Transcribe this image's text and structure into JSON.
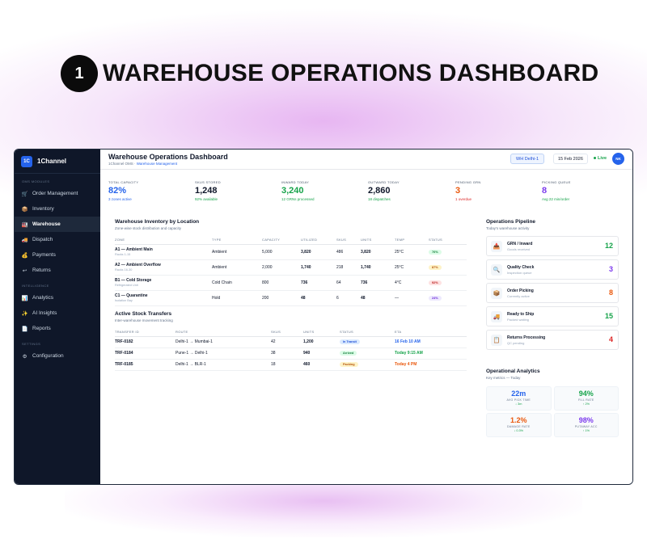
{
  "headline": {
    "step": "1",
    "title": "WAREHOUSE OPERATIONS DASHBOARD"
  },
  "colors": {
    "primary": "#2563eb",
    "sidebar": "#0f1729",
    "green": "#16a34a",
    "orange": "#ea580c",
    "purple": "#7c3aed",
    "red": "#dc2626"
  },
  "sidebar": {
    "brand_logo": "1C",
    "brand_name": "1Channel",
    "sections": [
      {
        "title": "OMS MODULES",
        "items": [
          {
            "icon": "cart-icon",
            "label": "Order Management"
          },
          {
            "icon": "box-icon",
            "label": "Inventory"
          },
          {
            "icon": "warehouse-icon",
            "label": "Warehouse",
            "active": true
          },
          {
            "icon": "truck-icon",
            "label": "Dispatch"
          },
          {
            "icon": "money-icon",
            "label": "Payments"
          },
          {
            "icon": "returns-icon",
            "label": "Returns"
          }
        ]
      },
      {
        "title": "INTELLIGENCE",
        "items": [
          {
            "icon": "chart-icon",
            "label": "Analytics"
          },
          {
            "icon": "sparkle-icon",
            "label": "AI Insights"
          },
          {
            "icon": "report-icon",
            "label": "Reports"
          }
        ]
      },
      {
        "title": "SETTINGS",
        "items": [
          {
            "icon": "gear-icon",
            "label": "Configuration"
          }
        ]
      }
    ]
  },
  "topbar": {
    "title": "Warehouse Operations Dashboard",
    "breadcrumb_root": "1Channel OMS ·",
    "breadcrumb_current": "Warehouse Management",
    "warehouse": "WH Delhi-1",
    "date": "15 Feb 2026",
    "live": "Live",
    "avatar": "NK"
  },
  "kpis": [
    {
      "label": "TOTAL CAPACITY",
      "value": "82%",
      "sub": "3 zones active",
      "value_color": "#2563eb",
      "sub_color": "#2563eb"
    },
    {
      "label": "SKUS STORED",
      "value": "1,248",
      "sub": "92% available",
      "value_color": "#0f172a",
      "sub_color": "#16a34a"
    },
    {
      "label": "INWARD TODAY",
      "value": "3,240",
      "sub": "12 GRNs processed",
      "value_color": "#16a34a",
      "sub_color": "#16a34a"
    },
    {
      "label": "OUTWARD TODAY",
      "value": "2,860",
      "sub": "18 dispatches",
      "value_color": "#0f172a",
      "sub_color": "#16a34a"
    },
    {
      "label": "PENDING GRN",
      "value": "3",
      "sub": "1 overdue",
      "value_color": "#ea580c",
      "sub_color": "#dc2626"
    },
    {
      "label": "PICKING QUEUE",
      "value": "8",
      "sub": "Avg 22 min/order",
      "value_color": "#7c3aed",
      "sub_color": "#16a34a"
    }
  ],
  "inventory": {
    "title": "Warehouse Inventory by Location",
    "subtitle": "Zone-wise stock distribution and capacity",
    "columns": [
      "ZONE",
      "TYPE",
      "CAPACITY",
      "UTILIZED",
      "SKUS",
      "UNITS",
      "TEMP",
      "STATUS"
    ],
    "rows": [
      {
        "zone": "A1 — Ambient Main",
        "zone_sub": "Racks 1-15",
        "type": "Ambient",
        "capacity": "5,000",
        "utilized": "3,820",
        "skus": "486",
        "units": "3,820",
        "temp": "25°C",
        "status": "76%",
        "status_bg": "#dcfce7",
        "status_fg": "#15803d"
      },
      {
        "zone": "A2 — Ambient Overflow",
        "zone_sub": "Racks 16-30",
        "type": "Ambient",
        "capacity": "2,000",
        "utilized": "1,740",
        "skus": "218",
        "units": "1,740",
        "temp": "25°C",
        "status": "87%",
        "status_bg": "#fef3c7",
        "status_fg": "#b45309"
      },
      {
        "zone": "B1 — Cold Storage",
        "zone_sub": "Refrigerated Unit",
        "type": "Cold Chain",
        "capacity": "800",
        "utilized": "736",
        "skus": "64",
        "units": "736",
        "temp": "4°C",
        "status": "92%",
        "status_bg": "#fee2e2",
        "status_fg": "#b91c1c"
      },
      {
        "zone": "C1 — Quarantine",
        "zone_sub": "Isolation Bay",
        "type": "Hold",
        "capacity": "200",
        "utilized": "48",
        "skus": "6",
        "units": "48",
        "temp": "—",
        "status": "24%",
        "status_bg": "#ede9fe",
        "status_fg": "#6d28d9"
      }
    ]
  },
  "transfers": {
    "title": "Active Stock Transfers",
    "subtitle": "Inter-warehouse movement tracking",
    "columns": [
      "TRANSFER ID",
      "ROUTE",
      "SKUS",
      "UNITS",
      "STATUS",
      "ETA"
    ],
    "rows": [
      {
        "id": "TRF-0182",
        "route": "Delhi-1 → Mumbai-1",
        "skus": "42",
        "units": "1,200",
        "status": "In Transit",
        "status_bg": "#dbeafe",
        "status_fg": "#1d4ed8",
        "eta": "16 Feb 10 AM",
        "eta_color": "#2563eb"
      },
      {
        "id": "TRF-0184",
        "route": "Pune-1 → Delhi-1",
        "skus": "38",
        "units": "940",
        "status": "Arrived",
        "status_bg": "#dcfce7",
        "status_fg": "#15803d",
        "eta": "Today 9:15 AM",
        "eta_color": "#16a34a"
      },
      {
        "id": "TRF-0185",
        "route": "Delhi-1 → BLR-1",
        "skus": "18",
        "units": "460",
        "status": "Packing",
        "status_bg": "#fef3c7",
        "status_fg": "#b45309",
        "eta": "Today 4 PM",
        "eta_color": "#ea580c"
      }
    ]
  },
  "pipeline": {
    "title": "Operations Pipeline",
    "subtitle": "Today's warehouse activity",
    "items": [
      {
        "icon": "inbound-icon",
        "glyph": "📥",
        "name": "GRN / Inward",
        "sub": "Goods received",
        "count": "12",
        "color": "#16a34a"
      },
      {
        "icon": "magnifier-icon",
        "glyph": "🔍",
        "name": "Quality Check",
        "sub": "Inspection queue",
        "count": "3",
        "color": "#7c3aed"
      },
      {
        "icon": "package-icon",
        "glyph": "📦",
        "name": "Order Picking",
        "sub": "Currently active",
        "count": "8",
        "color": "#ea580c"
      },
      {
        "icon": "forklift-icon",
        "glyph": "🚚",
        "name": "Ready to Ship",
        "sub": "Packed waiting",
        "count": "15",
        "color": "#16a34a"
      },
      {
        "icon": "clipboard-icon",
        "glyph": "📋",
        "name": "Returns Processing",
        "sub": "QC pending",
        "count": "4",
        "color": "#dc2626"
      }
    ]
  },
  "analytics": {
    "title": "Operational Analytics",
    "subtitle": "Key metrics — Today",
    "cells": [
      {
        "value": "22m",
        "label": "AVG PICK TIME",
        "delta": "↓ 3m",
        "color": "#2563eb"
      },
      {
        "value": "94%",
        "label": "FILL RATE",
        "delta": "↑ 2%",
        "color": "#16a34a"
      },
      {
        "value": "1.2%",
        "label": "DAMAGE RATE",
        "delta": "↓ 0.3%",
        "color": "#ea580c"
      },
      {
        "value": "98%",
        "label": "PUTAWAY ACC",
        "delta": "↑ 1%",
        "color": "#7c3aed"
      }
    ]
  }
}
